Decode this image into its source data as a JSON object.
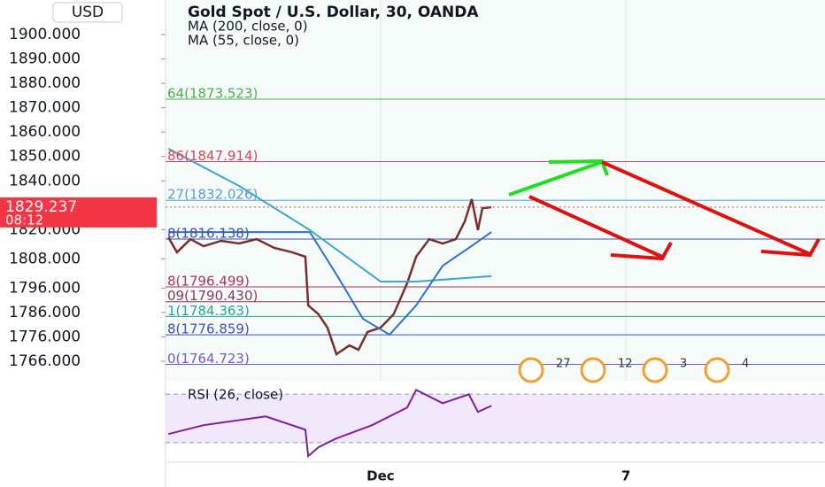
{
  "chart_data": {
    "type": "line",
    "title": "Gold Spot / U.S. Dollar, 30, OANDA",
    "currency": "USD",
    "ylim": [
      1758,
      1914.2
    ],
    "yticks": [
      {
        "value": 1900,
        "label": "1900.000"
      },
      {
        "value": 1890,
        "label": "1890.000"
      },
      {
        "value": 1880,
        "label": "1880.000"
      },
      {
        "value": 1870,
        "label": "1870.000"
      },
      {
        "value": 1860,
        "label": "1860.000"
      },
      {
        "value": 1850,
        "label": "1850.000"
      },
      {
        "value": 1840,
        "label": "1840.000"
      },
      {
        "value": 1820,
        "label": "1820.000"
      },
      {
        "value": 1808,
        "label": "1808.000"
      },
      {
        "value": 1796,
        "label": "1796.000"
      },
      {
        "value": 1786,
        "label": "1786.000"
      },
      {
        "value": 1776,
        "label": "1776.000"
      },
      {
        "value": 1766,
        "label": "1766.000"
      }
    ],
    "xlim": [
      -4.26,
      11.87
    ],
    "xticks": [
      {
        "value": 1,
        "label": "Dec"
      },
      7
    ],
    "last_price": 1829.237,
    "countdown": "08:12",
    "series": [
      {
        "color": "#7a2e2e",
        "x": [
          -4.19,
          -3.98,
          -3.65,
          -3.33,
          -2.9,
          -2.46,
          -2.03,
          -1.6,
          -1.16,
          -0.84,
          -0.77,
          -0.52,
          -0.3,
          -0.08,
          0.24,
          0.46,
          0.68,
          1,
          1.32,
          1.65,
          1.87,
          2.19,
          2.52,
          2.84,
          3.06,
          3.23,
          3.38,
          3.49,
          3.71
        ],
        "values": [
          1816.8,
          1810.7,
          1816.1,
          1813.2,
          1815.4,
          1814.3,
          1816.1,
          1812.5,
          1810.7,
          1808.9,
          1788.9,
          1785.3,
          1779.8,
          1768.9,
          1772.5,
          1770.7,
          1778,
          1779.8,
          1785.3,
          1798,
          1808.9,
          1816.1,
          1814.3,
          1816.1,
          1823.4,
          1832.5,
          1819.8,
          1828.8,
          1829.2
        ]
      },
      {
        "name": "MA (200, close, 0)",
        "color": "#3fa7c9",
        "x": [
          -4.19,
          -2.46,
          -0.73,
          1,
          1.87,
          3.71
        ],
        "values": [
          1853.2,
          1837.9,
          1819.8,
          1798.7,
          1798.7,
          1800.9
        ]
      },
      {
        "name": "MA (55, close, 0)",
        "color": "#2f6fd6",
        "x": [
          -4.19,
          -0.73,
          -0.08,
          0.57,
          1.22,
          1.87,
          2.52,
          3.16,
          3.71
        ],
        "values": [
          1819,
          1819,
          1801.6,
          1783.4,
          1776.9,
          1788.9,
          1805.2,
          1812.5,
          1819
        ]
      }
    ],
    "fib_levels": [
      {
        "value": 1873.523,
        "label": "64(1873.523)",
        "color": "#4caf50"
      },
      {
        "value": 1847.914,
        "label": "86(1847.914)",
        "color": "#e04060"
      },
      {
        "value": 1832.026,
        "label": "27(1832.026)",
        "color": "#5b9bd5"
      },
      {
        "value": 1816.138,
        "label": "8(1816.138)",
        "color": "#3f51b5"
      },
      {
        "value": 1796.499,
        "label": "8(1796.499)",
        "color": "#b03060"
      },
      {
        "value": 1790.43,
        "label": "09(1790.430)",
        "color": "#8e3a59"
      },
      {
        "value": 1784.363,
        "label": "1(1784.363)",
        "color": "#26a69a"
      },
      {
        "value": 1776.859,
        "label": "8(1776.859)",
        "color": "#3f51b5"
      },
      {
        "value": 1764.723,
        "label": "0(1764.723)",
        "color": "#7e57c2"
      }
    ],
    "rsi": {
      "title": "RSI (26, close)",
      "ylim": [
        0,
        100
      ],
      "band": [
        30,
        70
      ],
      "color": "#7b1fa2",
      "x": [
        -4.19,
        -3.33,
        -1.81,
        -0.84,
        -0.77,
        -0.52,
        -0.08,
        0.79,
        1.65,
        1.87,
        2.52,
        3.16,
        3.38,
        3.71
      ],
      "values": [
        37.1,
        44.4,
        51.6,
        40.7,
        18.9,
        26.2,
        33.5,
        44.4,
        58.9,
        73.5,
        62.5,
        69.8,
        55.3,
        60.4
      ]
    },
    "events": [
      "27",
      "12",
      "3",
      "4"
    ]
  }
}
